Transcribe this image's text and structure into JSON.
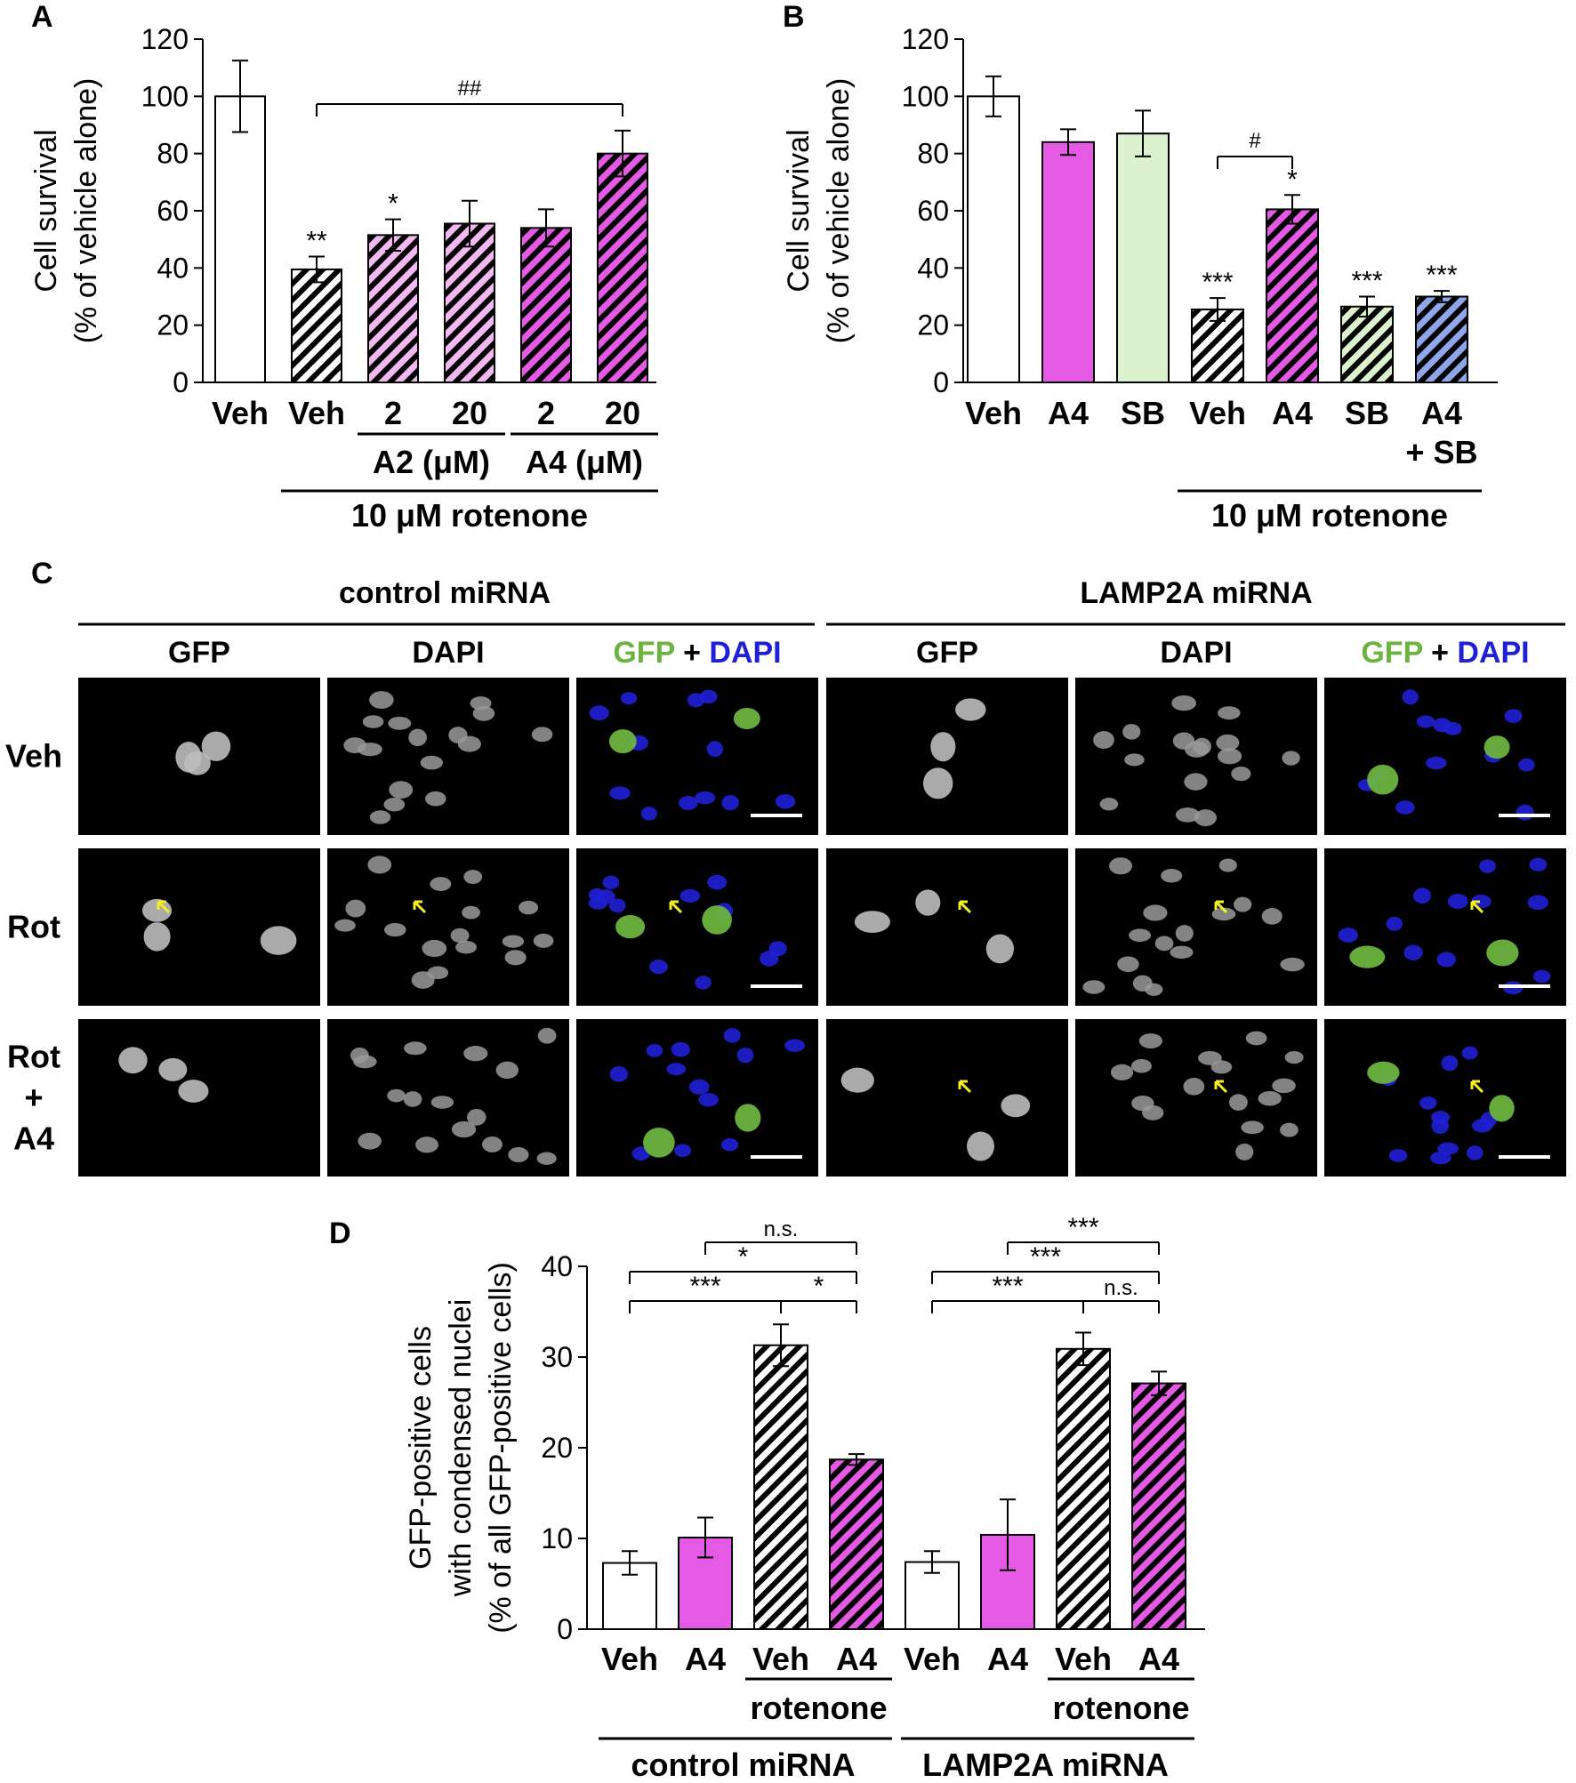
{
  "colors": {
    "white": "#ffffff",
    "a2": "#f2b9f0",
    "a4": "#e45ae4",
    "sb": "#dcf2cf",
    "a4sb": "#8fa6ea",
    "black": "#000000",
    "gfp": "#6cb33f",
    "dapi": "#1f1fd6",
    "arrow": "#f2ee1f"
  },
  "chart_data": [
    {
      "panel": "A",
      "type": "bar",
      "ylabel_line1": "Cell survival",
      "ylabel_line2": "(% of vehicle alone)",
      "ylim": [
        0,
        120
      ],
      "yticks": [
        "0",
        "20",
        "40",
        "60",
        "80",
        "100",
        "120"
      ],
      "bars": [
        {
          "label": "Veh",
          "value": 100,
          "error": 12.5,
          "color": "white",
          "hatched": false,
          "sig": ""
        },
        {
          "label": "Veh",
          "value": 39.5,
          "error": 4.5,
          "color": "white",
          "hatched": true,
          "sig": "**"
        },
        {
          "label": "2",
          "value": 51.5,
          "error": 5.5,
          "color": "a2",
          "hatched": true,
          "sig": "*"
        },
        {
          "label": "20",
          "value": 55.5,
          "error": 8,
          "color": "a2",
          "hatched": true,
          "sig": ""
        },
        {
          "label": "2",
          "value": 54,
          "error": 6.5,
          "color": "a4",
          "hatched": true,
          "sig": ""
        },
        {
          "label": "20",
          "value": 80,
          "error": 8,
          "color": "a4",
          "hatched": true,
          "sig": ""
        }
      ],
      "subgroup_labels": [
        "A2 (μM)",
        "A4 (μM)"
      ],
      "group_label": "10 μM rotenone",
      "brackets": [
        {
          "text": "##",
          "from": 1,
          "to": 5
        }
      ]
    },
    {
      "panel": "B",
      "type": "bar",
      "ylabel_line1": "Cell survival",
      "ylabel_line2": "(% of vehicle alone)",
      "ylim": [
        0,
        120
      ],
      "yticks": [
        "0",
        "20",
        "40",
        "60",
        "80",
        "100",
        "120"
      ],
      "bars": [
        {
          "label": "Veh",
          "label2": "",
          "value": 100,
          "error": 7,
          "color": "white",
          "hatched": false,
          "sig": ""
        },
        {
          "label": "A4",
          "label2": "",
          "value": 84,
          "error": 4.5,
          "color": "a4",
          "hatched": false,
          "sig": ""
        },
        {
          "label": "SB",
          "label2": "",
          "value": 87,
          "error": 8,
          "color": "sb",
          "hatched": false,
          "sig": ""
        },
        {
          "label": "Veh",
          "label2": "",
          "value": 25.5,
          "error": 4,
          "color": "white",
          "hatched": true,
          "sig": "***"
        },
        {
          "label": "A4",
          "label2": "",
          "value": 60.5,
          "error": 5,
          "color": "a4",
          "hatched": true,
          "sig": "*"
        },
        {
          "label": "SB",
          "label2": "",
          "value": 26.5,
          "error": 3.5,
          "color": "sb",
          "hatched": true,
          "sig": "***"
        },
        {
          "label": "A4",
          "label2": "+ SB",
          "value": 30,
          "error": 2,
          "color": "a4sb",
          "hatched": true,
          "sig": "***"
        }
      ],
      "group_label": "10 μM rotenone",
      "brackets": [
        {
          "text": "#",
          "from": 3,
          "to": 4
        }
      ]
    },
    {
      "panel": "D",
      "type": "bar",
      "ylabel_line1": "GFP-positive cells",
      "ylabel_line2": "with condensed nuclei",
      "ylabel_line3": "(% of all GFP-positive cells)",
      "ylim": [
        0,
        40
      ],
      "yticks": [
        "0",
        "10",
        "20",
        "30",
        "40"
      ],
      "bars": [
        {
          "label": "Veh",
          "value": 7.3,
          "error": 1.3,
          "color": "white",
          "hatched": false
        },
        {
          "label": "A4",
          "value": 10.1,
          "error": 2.2,
          "color": "a4",
          "hatched": false
        },
        {
          "label": "Veh",
          "value": 31.3,
          "error": 2.3,
          "color": "white",
          "hatched": true
        },
        {
          "label": "A4",
          "value": 18.7,
          "error": 0.6,
          "color": "a4",
          "hatched": true
        },
        {
          "label": "Veh",
          "value": 7.4,
          "error": 1.2,
          "color": "white",
          "hatched": false
        },
        {
          "label": "A4",
          "value": 10.4,
          "error": 3.9,
          "color": "a4",
          "hatched": false
        },
        {
          "label": "Veh",
          "value": 30.9,
          "error": 1.8,
          "color": "white",
          "hatched": true
        },
        {
          "label": "A4",
          "value": 27.1,
          "error": 1.3,
          "color": "a4",
          "hatched": true
        }
      ],
      "subgroup_labels": [
        "rotenone",
        "rotenone"
      ],
      "group_labels": [
        "control miRNA",
        "LAMP2A miRNA"
      ],
      "brackets": [
        {
          "text": "n.s.",
          "from": 1,
          "to": 3,
          "level": 3,
          "small": true
        },
        {
          "text": "*",
          "from": 0,
          "to": 3,
          "level": 2
        },
        {
          "text": "***",
          "from": 0,
          "to": 2,
          "level": 1
        },
        {
          "text": "*",
          "from": 2,
          "to": 3,
          "level": 1
        },
        {
          "text": "***",
          "from": 5,
          "to": 7,
          "level": 3
        },
        {
          "text": "***",
          "from": 4,
          "to": 7,
          "level": 2
        },
        {
          "text": "***",
          "from": 4,
          "to": 6,
          "level": 1
        },
        {
          "text": "n.s.",
          "from": 6,
          "to": 7,
          "level": 1,
          "small": true
        }
      ]
    }
  ],
  "panel_labels": {
    "a": "A",
    "b": "B",
    "c": "C",
    "d": "D"
  },
  "micrographs": {
    "groups": [
      "control miRNA",
      "LAMP2A miRNA"
    ],
    "column_headers": [
      "GFP",
      "DAPI",
      "GFP + DAPI",
      "GFP",
      "DAPI",
      "GFP + DAPI"
    ],
    "header_gfp": "GFP",
    "header_plus": " + ",
    "header_dapi": "DAPI",
    "row_labels": [
      [
        "Veh"
      ],
      [
        "Rot"
      ],
      [
        "Rot",
        "+",
        "A4"
      ]
    ]
  }
}
